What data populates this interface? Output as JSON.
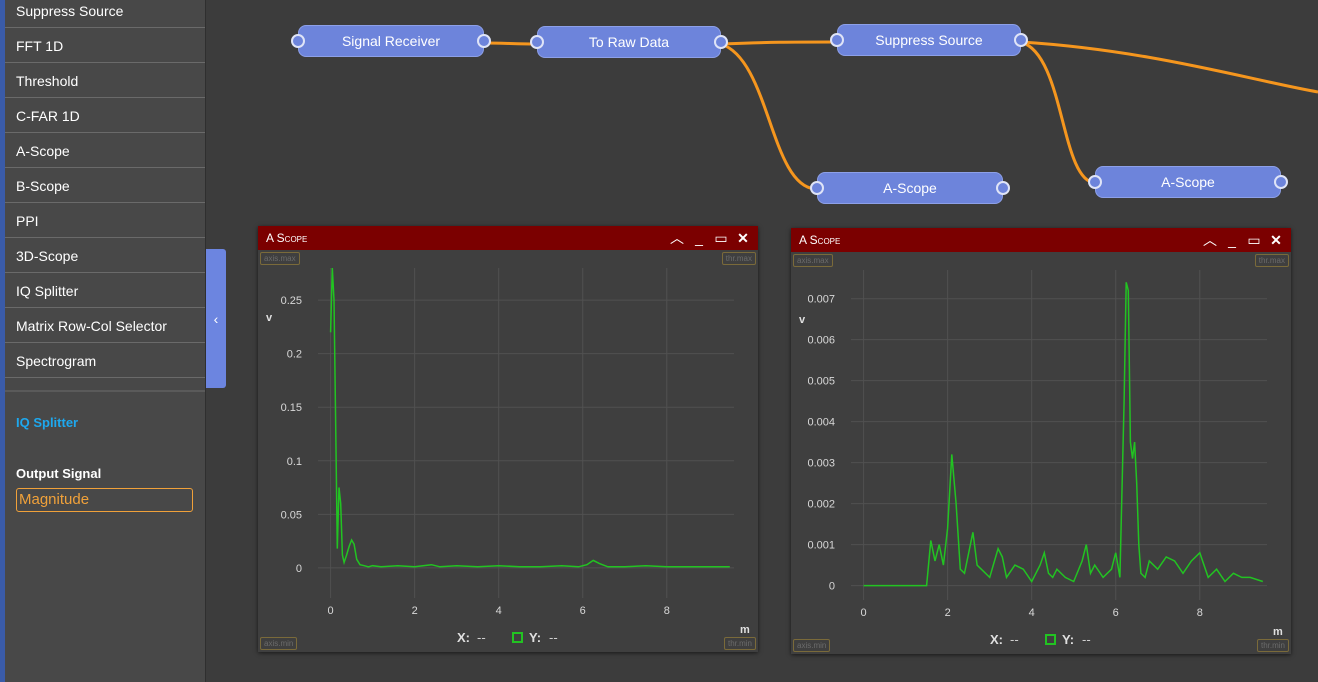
{
  "sidebar": {
    "items": [
      "Suppress Source",
      "FFT 1D",
      "Threshold",
      "C-FAR 1D",
      "A-Scope",
      "B-Scope",
      "PPI",
      "3D-Scope",
      "IQ Splitter",
      "Matrix Row-Col Selector",
      "Spectrogram"
    ],
    "selected_title": "IQ Splitter",
    "output_label": "Output Signal",
    "output_value": "Magnitude",
    "collapse_icon": "chevron-left-icon"
  },
  "nodes": {
    "signal_receiver": "Signal Receiver",
    "to_raw_data": "To Raw Data",
    "suppress_source": "Suppress Source",
    "ascope_a": "A-Scope",
    "ascope_b": "A-Scope"
  },
  "colors": {
    "wire": "#f5961e",
    "trace": "#22c322",
    "titlebar": "#7b0000",
    "node": "#6d84db"
  },
  "scopes": [
    {
      "title": "A Scope",
      "axis_max_tag": "axis.max",
      "thr_max_tag": "thr.max",
      "axis_min_tag": "axis.min",
      "thr_min_tag": "thr.min",
      "y_unit": "v",
      "x_unit": "m",
      "x_readout_label": "X:",
      "x_readout_value": "--",
      "y_readout_label": "Y:",
      "y_readout_value": "--",
      "chart_data": {
        "type": "line",
        "x_ticks": [
          0,
          2,
          4,
          6,
          8
        ],
        "y_ticks": [
          0,
          0.05,
          0.1,
          0.15,
          0.2,
          0.25
        ],
        "xlim": [
          -0.3,
          9.6
        ],
        "ylim": [
          -0.03,
          0.28
        ],
        "x": [
          0,
          0.04,
          0.08,
          0.12,
          0.16,
          0.2,
          0.24,
          0.28,
          0.32,
          0.38,
          0.44,
          0.5,
          0.56,
          0.62,
          0.7,
          0.8,
          0.9,
          1.0,
          1.2,
          1.6,
          2.0,
          2.2,
          2.4,
          2.6,
          3.0,
          3.5,
          4.0,
          4.5,
          5.0,
          5.5,
          5.9,
          6.1,
          6.25,
          6.4,
          6.6,
          7.0,
          7.5,
          8.0,
          8.5,
          9.0,
          9.5
        ],
        "values": [
          0.22,
          0.28,
          0.25,
          0.14,
          0.018,
          0.075,
          0.06,
          0.012,
          0.005,
          0.012,
          0.02,
          0.026,
          0.022,
          0.008,
          0.003,
          0.002,
          0.001,
          0.002,
          0.001,
          0.002,
          0.001,
          0.002,
          0.003,
          0.001,
          0.002,
          0.001,
          0.002,
          0.001,
          0.001,
          0.002,
          0.001,
          0.003,
          0.007,
          0.004,
          0.001,
          0.001,
          0.002,
          0.001,
          0.001,
          0.001,
          0.001
        ]
      }
    },
    {
      "title": "A Scope",
      "axis_max_tag": "axis.max",
      "thr_max_tag": "thr.max",
      "axis_min_tag": "axis.min",
      "thr_min_tag": "thr.min",
      "y_unit": "v",
      "x_unit": "m",
      "x_readout_label": "X:",
      "x_readout_value": "--",
      "y_readout_label": "Y:",
      "y_readout_value": "--",
      "chart_data": {
        "type": "line",
        "x_ticks": [
          0,
          2,
          4,
          6,
          8
        ],
        "y_ticks": [
          0,
          0.001,
          0.002,
          0.003,
          0.004,
          0.005,
          0.006,
          0.007
        ],
        "xlim": [
          -0.3,
          9.6
        ],
        "ylim": [
          -0.0004,
          0.0077
        ],
        "x": [
          0,
          1.5,
          1.6,
          1.7,
          1.8,
          1.9,
          2.0,
          2.1,
          2.2,
          2.3,
          2.4,
          2.5,
          2.6,
          2.7,
          2.8,
          3.0,
          3.2,
          3.3,
          3.4,
          3.6,
          3.8,
          4.0,
          4.2,
          4.3,
          4.4,
          4.5,
          4.6,
          4.8,
          5.0,
          5.2,
          5.3,
          5.4,
          5.5,
          5.7,
          5.9,
          6.0,
          6.1,
          6.2,
          6.25,
          6.3,
          6.35,
          6.4,
          6.45,
          6.5,
          6.55,
          6.6,
          6.7,
          6.8,
          7.0,
          7.2,
          7.4,
          7.6,
          7.8,
          8.0,
          8.1,
          8.2,
          8.4,
          8.6,
          8.8,
          9.0,
          9.2,
          9.5
        ],
        "values": [
          0,
          0,
          0.0011,
          0.0006,
          0.001,
          0.0005,
          0.0014,
          0.0032,
          0.002,
          0.0004,
          0.0003,
          0.0008,
          0.0013,
          0.0005,
          0.0004,
          0.0002,
          0.0009,
          0.0007,
          0.0002,
          0.0005,
          0.0004,
          0.0001,
          0.0005,
          0.0008,
          0.0003,
          0.0002,
          0.0004,
          0.0002,
          0.0001,
          0.0006,
          0.001,
          0.0003,
          0.0005,
          0.0002,
          0.0004,
          0.0008,
          0.0002,
          0.0045,
          0.0074,
          0.0072,
          0.0035,
          0.0031,
          0.0035,
          0.0025,
          0.001,
          0.0003,
          0.0002,
          0.0006,
          0.0004,
          0.0007,
          0.0006,
          0.0003,
          0.0006,
          0.0008,
          0.0005,
          0.0002,
          0.0004,
          0.0001,
          0.0003,
          0.0002,
          0.0002,
          0.0001
        ]
      }
    }
  ]
}
